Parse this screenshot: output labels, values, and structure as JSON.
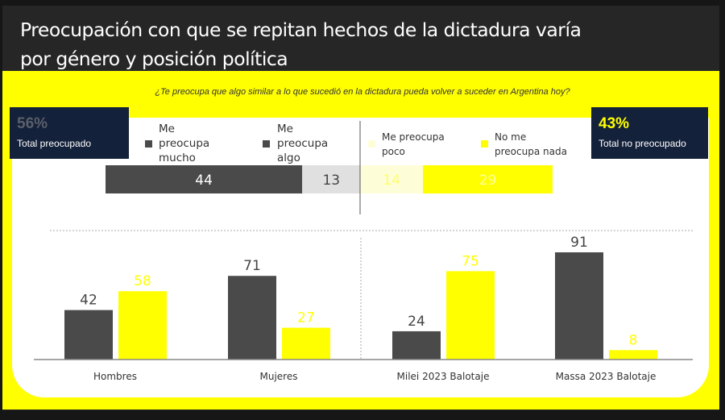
{
  "title_line1": "Preocupación con que se repitan hechos de la dictadura varía",
  "title_line2": "por género y posición política",
  "question": "¿Te preocupa que algo similar a lo que sucedió en la dictadura pueda volver a suceder en Argentina hoy?",
  "total_left": {
    "pct": "56%",
    "label": "Total preocupado",
    "pct_color": "#5a5f6a"
  },
  "total_right": {
    "pct": "43%",
    "label": "Total no preocupado",
    "pct_color": "#ffff00"
  },
  "colors": {
    "dark_gray": "#4a4a4a",
    "light_gray": "#e0e0e0",
    "pale_yellow": "#fdfdd8",
    "yellow": "#ffff00",
    "navy": "#14213a"
  },
  "chart_data": [
    {
      "type": "bar",
      "orientation": "horizontal-stacked",
      "legend": [
        "Me preocupa mucho",
        "Me preocupa algo",
        "Me preocupa poco",
        "No me preocupa nada"
      ],
      "legend_lines": [
        [
          "Me",
          "preocupa",
          "mucho"
        ],
        [
          "Me",
          "preocupa",
          "algo"
        ],
        [
          "Me preocupa",
          "poco"
        ],
        [
          "No me",
          "preocupa nada"
        ]
      ],
      "values": [
        44,
        13,
        14,
        29
      ],
      "labels": [
        "44",
        "13",
        "14",
        "29"
      ],
      "colors": [
        "#4a4a4a",
        "#e0e0e0",
        "#fdfdd8",
        "#ffff00"
      ]
    },
    {
      "type": "bar",
      "categories": [
        "Hombres",
        "Mujeres",
        "Milei 2023 Balotaje",
        "Massa 2023 Balotaje"
      ],
      "series": [
        {
          "values": [
            42,
            71,
            24,
            91
          ],
          "color": "#4a4a4a"
        },
        {
          "values": [
            58,
            27,
            75,
            8
          ],
          "color": "#ffff00"
        }
      ],
      "ylim": [
        0,
        100
      ],
      "grid": false
    }
  ]
}
